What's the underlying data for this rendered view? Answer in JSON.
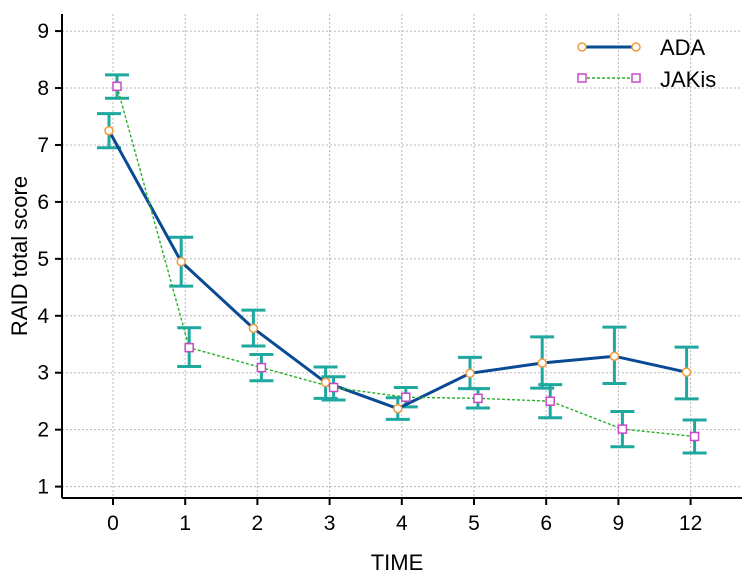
{
  "chart_data": {
    "type": "line",
    "title": "",
    "xlabel": "TIME",
    "ylabel": "RAID total score",
    "categories": [
      "0",
      "1",
      "2",
      "3",
      "4",
      "5",
      "6",
      "9",
      "12"
    ],
    "ylim": [
      0.8,
      9.3
    ],
    "yticks": [
      1,
      2,
      3,
      4,
      5,
      6,
      7,
      8,
      9
    ],
    "grid": true,
    "legend_position": "top-right",
    "series": [
      {
        "name": "ADA",
        "color": "#0a4a94",
        "marker": "circle",
        "marker_color": "#f09a3a",
        "line_style": "solid",
        "values": [
          7.25,
          4.95,
          3.78,
          2.83,
          2.37,
          2.99,
          3.17,
          3.29,
          3.01
        ],
        "error_low": [
          6.95,
          4.52,
          3.47,
          2.55,
          2.18,
          2.72,
          2.73,
          2.81,
          2.54
        ],
        "error_high": [
          7.55,
          5.38,
          4.1,
          3.1,
          2.56,
          3.27,
          3.63,
          3.8,
          3.45
        ]
      },
      {
        "name": "JAKis",
        "color": "#28b028",
        "marker": "square",
        "marker_color": "#c848c8",
        "line_style": "dashed",
        "values": [
          8.03,
          3.44,
          3.09,
          2.74,
          2.57,
          2.55,
          2.5,
          2.01,
          1.88
        ],
        "error_low": [
          7.82,
          3.11,
          2.86,
          2.52,
          2.4,
          2.38,
          2.21,
          1.7,
          1.59
        ],
        "error_high": [
          8.23,
          3.79,
          3.32,
          2.93,
          2.74,
          2.72,
          2.79,
          2.32,
          2.17
        ]
      }
    ],
    "error_bar_color": "#1fa8a0"
  }
}
